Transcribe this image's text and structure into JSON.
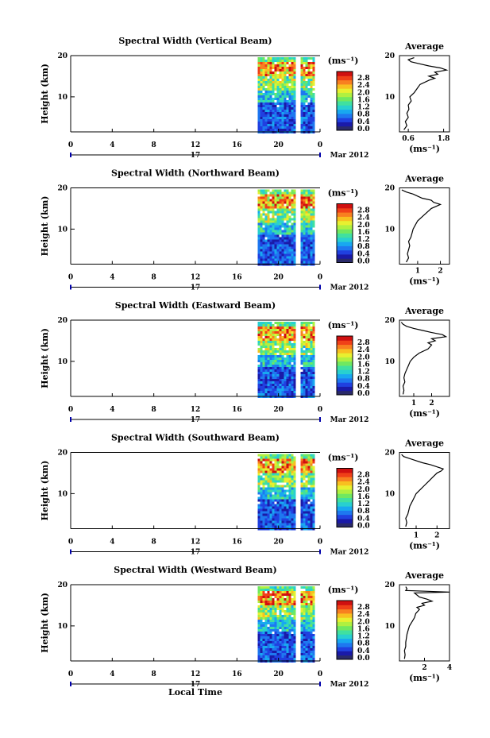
{
  "chart_data": {
    "type": "heatmap",
    "xlabel": "Local Time",
    "ylabel": "Height (km)",
    "date_label": "Mar 2012",
    "day_label": "17",
    "x_ticks": [
      "0",
      "4",
      "8",
      "12",
      "16",
      "20",
      "0"
    ],
    "xlim": [
      0,
      24
    ],
    "ylim": [
      1.5,
      20
    ],
    "y_ticks": [
      "20",
      "10"
    ],
    "colorbar": {
      "unit": "(ms⁻¹)",
      "ticks": [
        "2.8",
        "2.4",
        "2.0",
        "1.6",
        "1.2",
        "0.8",
        "0.4",
        "0.0"
      ],
      "colors": [
        "#2a2a6a",
        "#1a1aa8",
        "#2040e0",
        "#1e78f0",
        "#18a8f0",
        "#28d0d0",
        "#40e0a0",
        "#70e860",
        "#b0f040",
        "#e8f030",
        "#f8c020",
        "#f88020",
        "#f04018",
        "#d01010"
      ]
    },
    "data_window_hours": [
      18,
      23.5
    ],
    "data_gap_hours": [
      [
        21.6,
        22.0
      ]
    ],
    "panels": [
      {
        "title": "Spectral Width (Vertical Beam)",
        "avg_title": "Average",
        "avg_unit": "(ms⁻¹)",
        "avg_ticks": [
          "0.6",
          "1.8"
        ],
        "avg_xlim": [
          0.3,
          2.0
        ],
        "avg_profile": [
          [
            0.45,
            2
          ],
          [
            0.55,
            3
          ],
          [
            0.5,
            4
          ],
          [
            0.6,
            5
          ],
          [
            0.55,
            6
          ],
          [
            0.62,
            7
          ],
          [
            0.6,
            8
          ],
          [
            0.7,
            9
          ],
          [
            0.65,
            10
          ],
          [
            0.8,
            11
          ],
          [
            0.9,
            12
          ],
          [
            1.0,
            13
          ],
          [
            1.3,
            14
          ],
          [
            1.5,
            14.5
          ],
          [
            1.3,
            15
          ],
          [
            1.6,
            15.5
          ],
          [
            1.5,
            16
          ],
          [
            1.9,
            16.5
          ],
          [
            1.7,
            17
          ],
          [
            1.3,
            17.5
          ],
          [
            1.0,
            18
          ],
          [
            0.7,
            18.5
          ],
          [
            0.6,
            19
          ],
          [
            0.8,
            19.5
          ]
        ]
      },
      {
        "title": "Spectral Width (Northward Beam)",
        "avg_title": "Average",
        "avg_unit": "(ms⁻¹)",
        "avg_ticks": [
          "1",
          "2"
        ],
        "avg_xlim": [
          0.2,
          2.4
        ],
        "avg_profile": [
          [
            0.5,
            2
          ],
          [
            0.6,
            3
          ],
          [
            0.55,
            4
          ],
          [
            0.6,
            5
          ],
          [
            0.65,
            6
          ],
          [
            0.6,
            7
          ],
          [
            0.7,
            8
          ],
          [
            0.75,
            9
          ],
          [
            0.8,
            10
          ],
          [
            0.9,
            11
          ],
          [
            1.0,
            12
          ],
          [
            1.2,
            13
          ],
          [
            1.4,
            14
          ],
          [
            1.6,
            15
          ],
          [
            1.8,
            15.5
          ],
          [
            2.0,
            16
          ],
          [
            1.7,
            16.5
          ],
          [
            1.6,
            17
          ],
          [
            1.2,
            17.5
          ],
          [
            1.0,
            18
          ],
          [
            0.8,
            18.5
          ],
          [
            0.5,
            19
          ],
          [
            0.3,
            19.5
          ]
        ]
      },
      {
        "title": "Spectral Width (Eastward Beam)",
        "avg_title": "Average",
        "avg_unit": "(ms⁻¹)",
        "avg_ticks": [
          "1",
          "2"
        ],
        "avg_xlim": [
          0.2,
          3.0
        ],
        "avg_profile": [
          [
            0.4,
            2
          ],
          [
            0.45,
            3
          ],
          [
            0.4,
            4
          ],
          [
            0.5,
            5
          ],
          [
            0.45,
            6
          ],
          [
            0.5,
            7
          ],
          [
            0.6,
            8
          ],
          [
            0.7,
            9
          ],
          [
            0.8,
            10
          ],
          [
            1.0,
            11
          ],
          [
            1.3,
            12
          ],
          [
            1.8,
            13
          ],
          [
            2.0,
            14
          ],
          [
            1.8,
            14.5
          ],
          [
            2.2,
            15
          ],
          [
            2.0,
            15.5
          ],
          [
            2.8,
            16
          ],
          [
            2.6,
            16.5
          ],
          [
            2.0,
            17
          ],
          [
            1.5,
            17.5
          ],
          [
            1.0,
            18
          ],
          [
            0.6,
            18.5
          ],
          [
            0.4,
            19
          ],
          [
            0.3,
            19.5
          ]
        ]
      },
      {
        "title": "Spectral Width (Southward Beam)",
        "avg_title": "Average",
        "avg_unit": "(ms⁻¹)",
        "avg_ticks": [
          "1",
          "2"
        ],
        "avg_xlim": [
          0.2,
          2.6
        ],
        "avg_profile": [
          [
            0.5,
            2
          ],
          [
            0.55,
            3
          ],
          [
            0.5,
            4
          ],
          [
            0.6,
            5
          ],
          [
            0.65,
            6
          ],
          [
            0.7,
            7
          ],
          [
            0.8,
            8
          ],
          [
            0.9,
            9
          ],
          [
            1.0,
            10
          ],
          [
            1.2,
            11
          ],
          [
            1.4,
            12
          ],
          [
            1.6,
            13
          ],
          [
            1.8,
            14
          ],
          [
            2.0,
            15
          ],
          [
            2.2,
            15.5
          ],
          [
            2.3,
            16
          ],
          [
            2.0,
            16.5
          ],
          [
            1.7,
            17
          ],
          [
            1.3,
            17.5
          ],
          [
            1.0,
            18
          ],
          [
            0.7,
            18.5
          ],
          [
            0.4,
            19
          ],
          [
            0.3,
            19.5
          ]
        ]
      },
      {
        "title": "Spectral Width (Westward Beam)",
        "avg_title": "Average",
        "avg_unit": "(ms⁻¹)",
        "avg_ticks": [
          "2",
          "4"
        ],
        "avg_xlim": [
          0,
          4
        ],
        "avg_profile": [
          [
            0.4,
            2
          ],
          [
            0.45,
            3
          ],
          [
            0.4,
            4
          ],
          [
            0.5,
            5
          ],
          [
            0.5,
            6
          ],
          [
            0.55,
            7
          ],
          [
            0.6,
            8
          ],
          [
            0.7,
            9
          ],
          [
            0.8,
            10
          ],
          [
            1.0,
            11
          ],
          [
            1.2,
            12
          ],
          [
            1.3,
            13
          ],
          [
            1.6,
            14
          ],
          [
            1.4,
            14.5
          ],
          [
            2.0,
            15
          ],
          [
            1.8,
            15.5
          ],
          [
            2.6,
            16
          ],
          [
            2.2,
            16.5
          ],
          [
            1.6,
            17
          ],
          [
            1.4,
            17.5
          ],
          [
            1.2,
            18
          ],
          [
            4.0,
            18.2
          ],
          [
            0.5,
            18.6
          ],
          [
            0.6,
            19
          ],
          [
            0.5,
            19.5
          ]
        ]
      }
    ]
  }
}
